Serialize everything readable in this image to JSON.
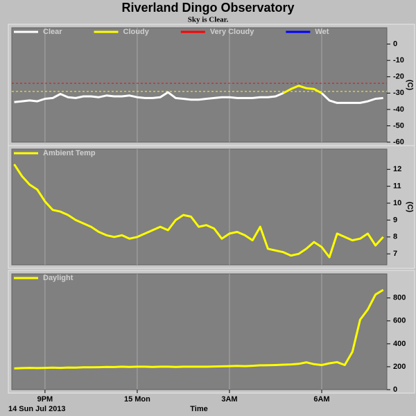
{
  "chart_data": [
    {
      "type": "line",
      "title": "Riverland Dingo Observatory",
      "subtitle": "Sky is Clear.",
      "ylabel": "(C)",
      "ylim": [
        -60,
        10
      ],
      "yticks": [
        -60,
        -50,
        -40,
        -30,
        -20,
        -10,
        0
      ],
      "xlim": [
        19.92,
        32.12
      ],
      "grid": true,
      "thresholds": [
        {
          "value": -29,
          "color": "#ffff00"
        },
        {
          "value": -24,
          "color": "#ff0000"
        }
      ],
      "x": [
        20,
        20.25,
        20.5,
        20.75,
        21,
        21.25,
        21.5,
        21.75,
        22,
        22.25,
        22.5,
        22.75,
        23,
        23.25,
        23.5,
        23.75,
        24,
        24.25,
        24.5,
        24.75,
        25,
        25.25,
        25.5,
        25.75,
        26,
        26.25,
        26.5,
        26.75,
        27,
        27.25,
        27.5,
        27.75,
        28,
        28.25,
        28.5,
        28.75,
        29,
        29.25,
        29.5,
        29.75,
        30,
        30.25,
        30.5,
        30.75,
        31,
        31.25,
        31.5,
        31.75,
        32
      ],
      "series": [
        {
          "name": "Clear",
          "color": "#ffffff",
          "values": [
            -35.5,
            -35,
            -34.5,
            -35,
            -33.5,
            -33,
            -30.5,
            -32.5,
            -33,
            -32,
            -32,
            -32.5,
            -31.5,
            -32,
            -32,
            -31.5,
            -32.5,
            -33,
            -33,
            -32.5,
            -29.5,
            -33,
            -33.5,
            -34,
            -34,
            -33.5,
            -33,
            -32.5,
            -32.5,
            -33,
            -33,
            -33,
            -32.5,
            -32.5,
            -32,
            -30,
            null,
            null,
            null,
            null,
            -30,
            -34.5,
            -36,
            -36,
            -36,
            -36,
            -35,
            -33.5,
            -33
          ]
        },
        {
          "name": "Cloudy",
          "color": "#ffff00",
          "values": [
            null,
            null,
            null,
            null,
            null,
            null,
            null,
            null,
            null,
            null,
            null,
            null,
            null,
            null,
            null,
            null,
            null,
            null,
            null,
            null,
            null,
            null,
            null,
            null,
            null,
            null,
            null,
            null,
            null,
            null,
            null,
            null,
            null,
            null,
            null,
            -30,
            -27.5,
            -25.5,
            -27,
            -27.5,
            -30,
            null,
            null,
            null,
            null,
            null,
            null,
            null,
            null
          ]
        },
        {
          "name": "Very Cloudy",
          "color": "#ff0000"
        },
        {
          "name": "Wet",
          "color": "#0000ff"
        }
      ]
    },
    {
      "type": "line",
      "ylabel": "(C)",
      "ylim": [
        6.35,
        13.2
      ],
      "yticks": [
        7,
        8,
        9,
        10,
        11,
        12
      ],
      "xlim": [
        19.92,
        32.12
      ],
      "grid": true,
      "x": [
        20,
        20.25,
        20.5,
        20.75,
        21,
        21.25,
        21.5,
        21.75,
        22,
        22.25,
        22.5,
        22.75,
        23,
        23.25,
        23.5,
        23.75,
        24,
        24.25,
        24.5,
        24.75,
        25,
        25.25,
        25.5,
        25.75,
        26,
        26.25,
        26.5,
        26.75,
        27,
        27.25,
        27.5,
        27.75,
        28,
        28.25,
        28.5,
        28.75,
        29,
        29.25,
        29.5,
        29.75,
        30,
        30.25,
        30.5,
        30.75,
        31,
        31.25,
        31.5,
        31.75,
        32
      ],
      "series": [
        {
          "name": "Ambient Temp",
          "color": "#ffff00",
          "values": [
            12.3,
            11.6,
            11.1,
            10.8,
            10.1,
            9.6,
            9.5,
            9.3,
            9.0,
            8.8,
            8.6,
            8.3,
            8.1,
            8.0,
            8.1,
            7.9,
            8.0,
            8.2,
            8.4,
            8.6,
            8.4,
            9.0,
            9.3,
            9.2,
            8.6,
            8.7,
            8.5,
            7.9,
            8.2,
            8.3,
            8.1,
            7.8,
            8.6,
            7.3,
            7.2,
            7.1,
            6.9,
            7.0,
            7.3,
            7.7,
            7.4,
            6.8,
            8.2,
            8.0,
            7.8,
            7.9,
            8.2,
            7.5,
            8.0
          ]
        }
      ]
    },
    {
      "type": "line",
      "xlabel": "Time",
      "date_label": "14 Sun Jul 2013",
      "ylim": [
        0,
        1010
      ],
      "yticks": [
        0,
        200,
        400,
        600,
        800
      ],
      "xlim": [
        19.92,
        32.12
      ],
      "grid": true,
      "xticks": [
        {
          "value": 21,
          "label": "9PM"
        },
        {
          "value": 24,
          "label": "15 Mon"
        },
        {
          "value": 27,
          "label": "3AM"
        },
        {
          "value": 30,
          "label": "6AM"
        }
      ],
      "x": [
        20,
        20.25,
        20.5,
        20.75,
        21,
        21.25,
        21.5,
        21.75,
        22,
        22.25,
        22.5,
        22.75,
        23,
        23.25,
        23.5,
        23.75,
        24,
        24.25,
        24.5,
        24.75,
        25,
        25.25,
        25.5,
        25.75,
        26,
        26.25,
        26.5,
        26.75,
        27,
        27.25,
        27.5,
        27.75,
        28,
        28.25,
        28.5,
        28.75,
        29,
        29.25,
        29.5,
        29.75,
        30,
        30.25,
        30.5,
        30.75,
        31,
        31.25,
        31.5,
        31.75,
        32
      ],
      "series": [
        {
          "name": "Daylight",
          "color": "#ffff00",
          "values": [
            185,
            188,
            190,
            188,
            190,
            192,
            190,
            193,
            192,
            195,
            195,
            196,
            198,
            197,
            200,
            198,
            200,
            200,
            198,
            200,
            200,
            198,
            200,
            200,
            200,
            200,
            202,
            203,
            205,
            207,
            205,
            208,
            212,
            213,
            215,
            218,
            220,
            225,
            238,
            222,
            215,
            230,
            240,
            215,
            330,
            610,
            700,
            830,
            870
          ]
        }
      ]
    }
  ]
}
